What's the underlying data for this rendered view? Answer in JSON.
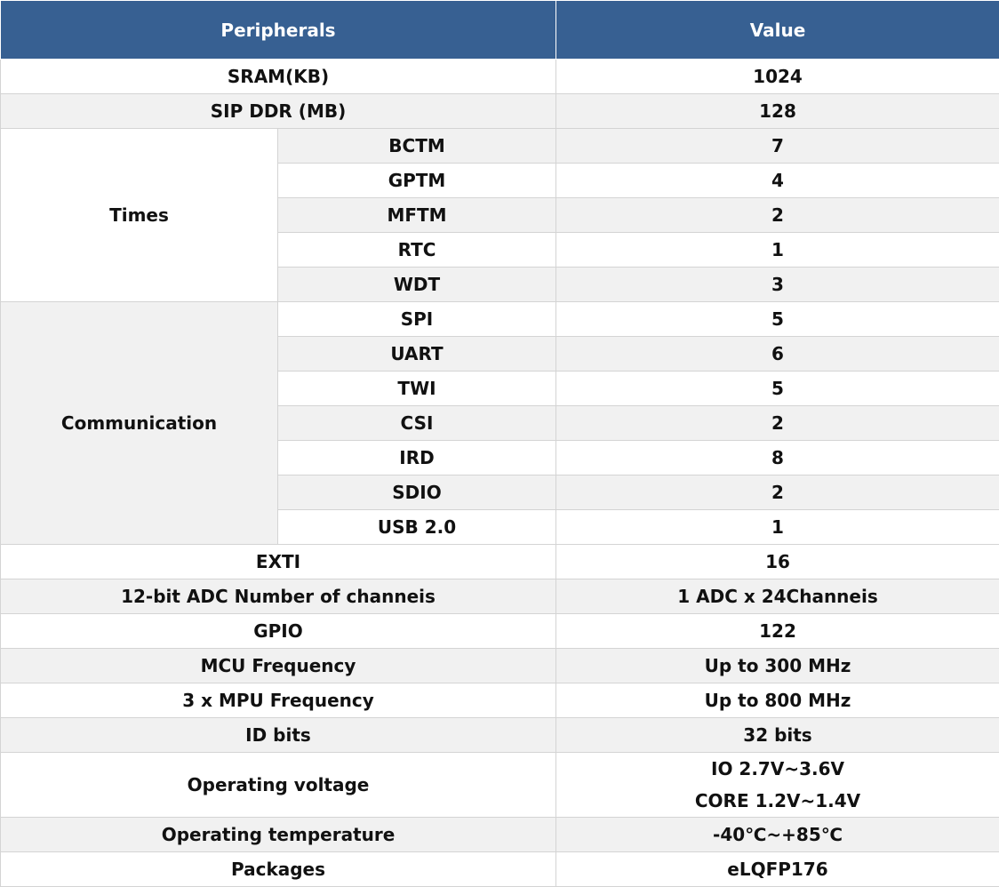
{
  "table": {
    "header": [
      "Peripherals",
      "Value"
    ],
    "rows": [
      {
        "label": "SRAM(KB)",
        "value": "1024"
      },
      {
        "label": "SIP DDR (MB)",
        "value": "128"
      },
      {
        "label": "Times",
        "items": [
          {
            "label": "BCTM",
            "value": "7"
          },
          {
            "label": "GPTM",
            "value": "4"
          },
          {
            "label": "MFTM",
            "value": "2"
          },
          {
            "label": "RTC",
            "value": "1"
          },
          {
            "label": "WDT",
            "value": "3"
          }
        ]
      },
      {
        "label": "Communication",
        "items": [
          {
            "label": "SPI",
            "value": "5"
          },
          {
            "label": "UART",
            "value": "6"
          },
          {
            "label": "TWI",
            "value": "5"
          },
          {
            "label": "CSI",
            "value": "2"
          },
          {
            "label": "IRD",
            "value": "8"
          },
          {
            "label": "SDIO",
            "value": "2"
          },
          {
            "label": "USB 2.0",
            "value": "1"
          }
        ]
      },
      {
        "label": "EXTI",
        "value": "16"
      },
      {
        "label": "12-bit ADC Number of channeis",
        "value": "1 ADC x 24Channeis"
      },
      {
        "label": "GPIO",
        "value": "122"
      },
      {
        "label": "MCU Frequency",
        "value": "Up to 300 MHz"
      },
      {
        "label": "3 x MPU Frequency",
        "value": "Up to 800 MHz"
      },
      {
        "label": "ID bits",
        "value": "32 bits"
      },
      {
        "label": "Operating voltage",
        "value": [
          "IO 2.7V~3.6V",
          "CORE 1.2V~1.4V"
        ]
      },
      {
        "label": "Operating temperature",
        "value": "-40℃~+85℃"
      },
      {
        "label": "Packages",
        "value": "eLQFP176"
      }
    ]
  }
}
